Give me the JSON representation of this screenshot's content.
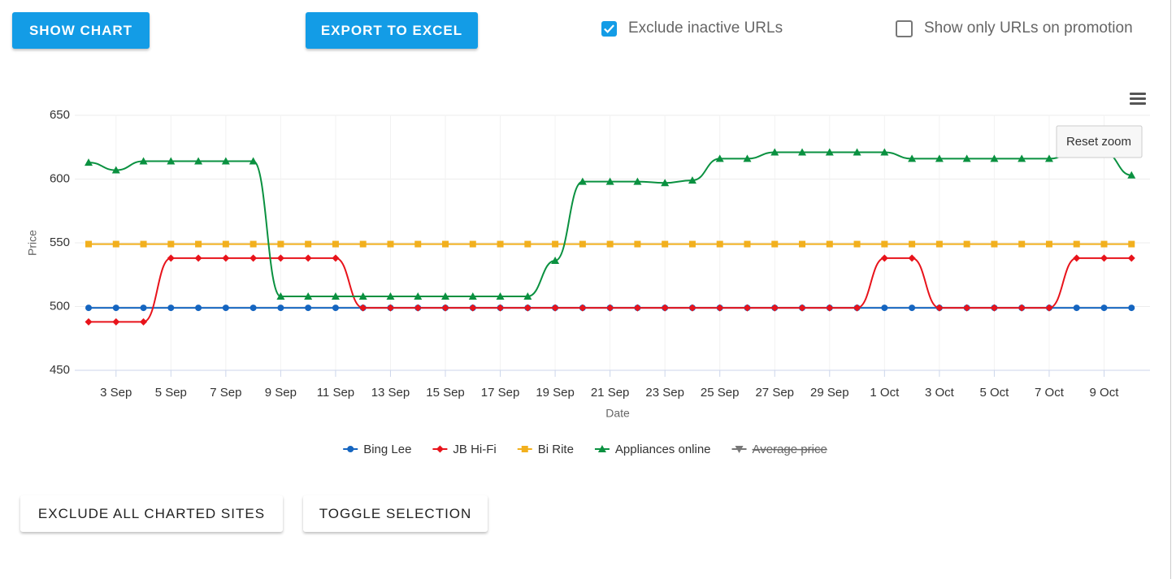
{
  "toolbar": {
    "show_chart": "SHOW CHART",
    "export": "EXPORT TO EXCEL",
    "exclude_inactive": {
      "label": "Exclude inactive URLs",
      "checked": true
    },
    "promotion_only": {
      "label": "Show only URLs on promotion",
      "checked": false
    }
  },
  "chart_ui": {
    "reset_zoom": "Reset zoom"
  },
  "chart_data": {
    "type": "line",
    "xlabel": "Date",
    "ylabel": "Price",
    "categories": [
      null,
      "3 Sep",
      null,
      "5 Sep",
      null,
      "7 Sep",
      null,
      "9 Sep",
      null,
      "11 Sep",
      null,
      "13 Sep",
      null,
      "15 Sep",
      null,
      "17 Sep",
      null,
      "19 Sep",
      null,
      "21 Sep",
      null,
      "23 Sep",
      null,
      "25 Sep",
      null,
      "27 Sep",
      null,
      "29 Sep",
      null,
      "1 Oct",
      null,
      "3 Oct",
      null,
      "5 Oct",
      null,
      "7 Oct",
      null,
      "9 Oct",
      null
    ],
    "ylim": [
      450,
      650
    ],
    "yticks": [
      450,
      500,
      550,
      600,
      650
    ],
    "grid": true,
    "legend": "bottom",
    "series": [
      {
        "name": "Bing Lee",
        "color": "#1565c0",
        "marker": "circle",
        "values": [
          499,
          499,
          499,
          499,
          499,
          499,
          499,
          499,
          499,
          499,
          499,
          499,
          499,
          499,
          499,
          499,
          499,
          499,
          499,
          499,
          499,
          499,
          499,
          499,
          499,
          499,
          499,
          499,
          499,
          499,
          499,
          499,
          499,
          499,
          499,
          499,
          499,
          499,
          499
        ]
      },
      {
        "name": "JB Hi-Fi",
        "color": "#e8131b",
        "marker": "diamond",
        "values": [
          488,
          488,
          488,
          538,
          538,
          538,
          538,
          538,
          538,
          538,
          499,
          499,
          499,
          499,
          499,
          499,
          499,
          499,
          499,
          499,
          499,
          499,
          499,
          499,
          499,
          499,
          499,
          499,
          499,
          538,
          538,
          499,
          499,
          499,
          499,
          499,
          538,
          538,
          538
        ]
      },
      {
        "name": "Bi Rite",
        "color": "#f2b01e",
        "marker": "square",
        "values": [
          549,
          549,
          549,
          549,
          549,
          549,
          549,
          549,
          549,
          549,
          549,
          549,
          549,
          549,
          549,
          549,
          549,
          549,
          549,
          549,
          549,
          549,
          549,
          549,
          549,
          549,
          549,
          549,
          549,
          549,
          549,
          549,
          549,
          549,
          549,
          549,
          549,
          549,
          549
        ]
      },
      {
        "name": "Appliances online",
        "color": "#0a9140",
        "marker": "triangle",
        "values": [
          613,
          607,
          614,
          614,
          614,
          614,
          614,
          508,
          508,
          508,
          508,
          508,
          508,
          508,
          508,
          508,
          508,
          536,
          598,
          598,
          598,
          597,
          599,
          616,
          616,
          621,
          621,
          621,
          621,
          621,
          616,
          616,
          616,
          616,
          616,
          616,
          621,
          621,
          603
        ]
      }
    ],
    "hidden_series": [
      {
        "name": "Average price",
        "color": "#666666",
        "marker": "triangle-down"
      }
    ]
  },
  "footer": {
    "exclude_all": "EXCLUDE ALL CHARTED SITES",
    "toggle": "TOGGLE SELECTION"
  }
}
